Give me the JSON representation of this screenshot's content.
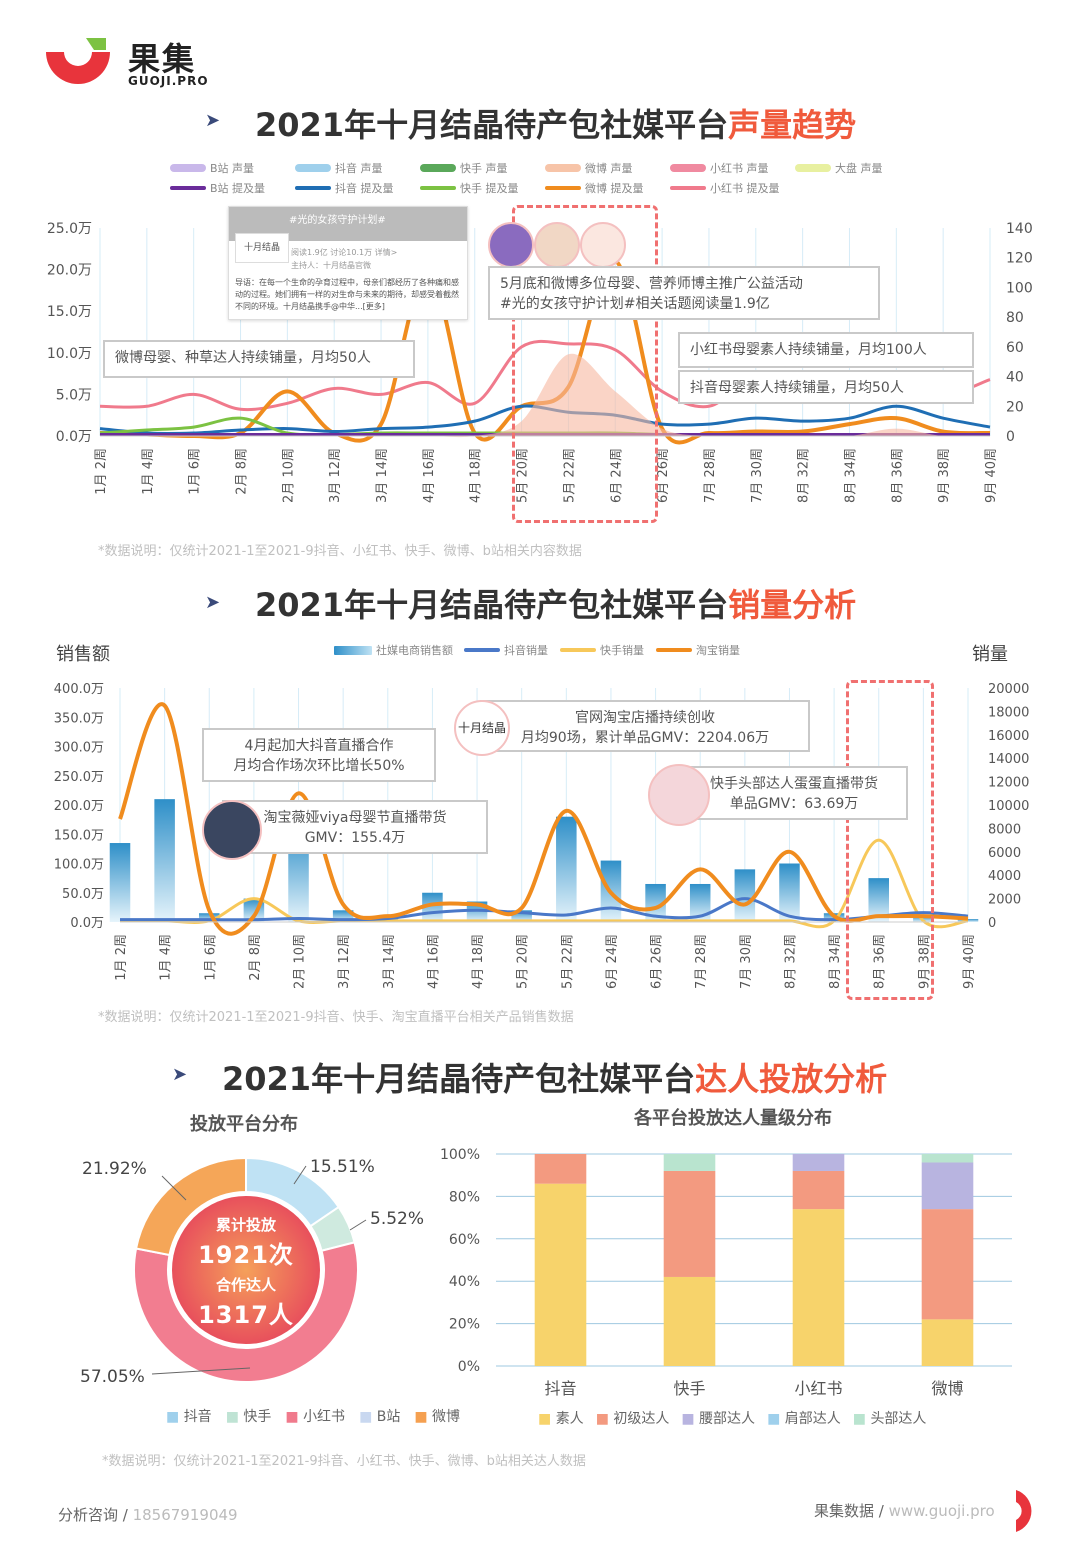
{
  "brand": {
    "name": "果集",
    "sub": "GUOJI.PRO"
  },
  "section1": {
    "title_main": "2021年十月结晶待产包社媒平台",
    "title_hl": "声量趋势",
    "note": "*数据说明：仅统计2021-1至2021-9抖音、小红书、快手、微博、b站相关内容数据",
    "legend_row1": [
      "B站 声量",
      "抖音 声量",
      "快手 声量",
      "微博 声量",
      "小红书 声量",
      "大盘 声量"
    ],
    "legend_row2": [
      "B站 提及量",
      "抖音 提及量",
      "快手 提及量",
      "微博 提及量",
      "小红书 提及量"
    ],
    "post_title": "#光的女孩守护计划#",
    "post_author": "十月结晶",
    "post_meta": "阅读1.9亿 讨论10.1万 详情>",
    "post_host": "主持人：十月结晶官微",
    "post_text": "导语：在每一个生命的孕育过程中，母亲们都经历了各种痛和感动的过程。她们拥有一样的对生命与未来的期待，却感受着截然不同的环境。十月结晶携手@中华...[更多]",
    "callouts": {
      "weibo": "微博母婴、种草达人持续铺量，月均50人",
      "campaign_l1": "5月底和微博多位母婴、营养师博主推广公益活动",
      "campaign_l2": "#光的女孩守护计划#相关话题阅读量1.9亿",
      "xhs": "小红书母婴素人持续铺量，月均100人",
      "douyin": "抖音母婴素人持续铺量，月均50人"
    }
  },
  "section2": {
    "title_main": "2021年十月结晶待产包社媒平台",
    "title_hl": "销量分析",
    "ylabel_left": "销售额",
    "ylabel_right": "销量",
    "legend": [
      "社媒电商销售额",
      "抖音销量",
      "快手销量",
      "淘宝销量"
    ],
    "note": "*数据说明：仅统计2021-1至2021-9抖音、快手、淘宝直播平台相关产品销售数据",
    "callouts": {
      "douyin_l1": "4月起加大抖音直播合作",
      "douyin_l2": "月均合作场次环比增长50%",
      "viya_l1": "淘宝薇娅viya母婴节直播带货",
      "viya_l2": "GMV：155.4万",
      "shop_l1": "官网淘宝店播持续创收",
      "shop_l2": "月均90场，累计单品GMV：2204.06万",
      "shop_logo": "十月结晶",
      "ks_l1": "快手头部达人蛋蛋直播带货",
      "ks_l2": "单品GMV：63.69万"
    }
  },
  "section3": {
    "title_main": "2021年十月结晶待产包社媒平台",
    "title_hl": "达人投放分析",
    "pie_title": "投放平台分布",
    "bar_title": "各平台投放达人量级分布",
    "center_l1": "累计投放",
    "center_v1": "1921次",
    "center_l2": "合作达人",
    "center_v2": "1317人",
    "pie_legend": [
      "抖音",
      "快手",
      "小红书",
      "B站",
      "微博"
    ],
    "bar_legend": [
      "素人",
      "初级达人",
      "腰部达人",
      "肩部达人",
      "头部达人"
    ],
    "note": "*数据说明：仅统计2021-1至2021-9抖音、小红书、快手、微博、b站相关达人数据"
  },
  "footer": {
    "left_label": "分析咨询 / ",
    "left_value": "18567919049",
    "right_label": "果集数据 / ",
    "right_value": "www.guoji.pro"
  },
  "colors": {
    "accent": "#f05a3c",
    "orange": "#f08c1e",
    "pink": "#f07a8c",
    "blue": "#1f6eb4",
    "lightblue": "#9fd0ec",
    "yellow": "#f7d36b"
  },
  "chart_data": [
    {
      "type": "line",
      "x": [
        "1月 2周",
        "1月 4周",
        "1月 6周",
        "2月 8周",
        "2月 10周",
        "3月 12周",
        "3月 14周",
        "4月 16周",
        "4月 18周",
        "5月 20周",
        "5月 22周",
        "6月 24周",
        "6月 26周",
        "7月 28周",
        "7月 30周",
        "8月 32周",
        "8月 34周",
        "8月 36周",
        "9月 38周",
        "9月 40周"
      ],
      "ylim_left": [
        0,
        250000
      ],
      "yticks_left": [
        "0.0万",
        "5.0万",
        "10.0万",
        "15.0万",
        "20.0万",
        "25.0万"
      ],
      "ylim_right": [
        0,
        140
      ],
      "yticks_right": [
        "0",
        "20",
        "40",
        "60",
        "80",
        "100",
        "120",
        "140"
      ],
      "series": [
        {
          "name": "小红书 提及量",
          "axis": "right",
          "values": [
            20,
            20,
            28,
            18,
            22,
            32,
            28,
            36,
            22,
            60,
            62,
            58,
            30,
            20,
            40,
            28,
            36,
            40,
            28,
            38
          ]
        },
        {
          "name": "微博 提及量",
          "axis": "right",
          "values": [
            2,
            1,
            0,
            2,
            30,
            2,
            8,
            110,
            2,
            20,
            33,
            118,
            5,
            2,
            3,
            3,
            8,
            12,
            3,
            2
          ]
        },
        {
          "name": "抖音 提及量",
          "axis": "right",
          "values": [
            5,
            2,
            2,
            4,
            5,
            3,
            5,
            6,
            10,
            20,
            16,
            14,
            8,
            8,
            12,
            10,
            12,
            20,
            12,
            6
          ]
        },
        {
          "name": "快手 提及量",
          "axis": "right",
          "values": [
            2,
            4,
            6,
            12,
            2,
            1,
            2,
            2,
            2,
            2,
            2,
            2,
            1,
            1,
            1,
            1,
            1,
            1,
            1,
            1
          ]
        },
        {
          "name": "B站 提及量",
          "axis": "right",
          "values": [
            1,
            1,
            1,
            1,
            1,
            1,
            1,
            1,
            1,
            1,
            1,
            1,
            1,
            1,
            1,
            1,
            1,
            1,
            1,
            1
          ]
        },
        {
          "name": "微博 声量",
          "axis": "right",
          "values": [
            0,
            0,
            0,
            0,
            0,
            0,
            0,
            0,
            0,
            10,
            55,
            30,
            5,
            0,
            0,
            0,
            0,
            5,
            0,
            0
          ]
        }
      ]
    },
    {
      "type": "bar",
      "x": [
        "1月 2周",
        "1月 4周",
        "1月 6周",
        "2月 8周",
        "2月 10周",
        "3月 12周",
        "3月 14周",
        "4月 16周",
        "4月 18周",
        "5月 20周",
        "5月 22周",
        "6月 24周",
        "6月 26周",
        "7月 28周",
        "7月 30周",
        "8月 32周",
        "8月 34周",
        "8月 36周",
        "9月 38周",
        "9月 40周"
      ],
      "ylim_left": [
        0,
        4000000
      ],
      "yticks_left": [
        "0.0万",
        "50.0万",
        "100.0万",
        "150.0万",
        "200.0万",
        "250.0万",
        "300.0万",
        "350.0万",
        "400.0万"
      ],
      "ylim_right": [
        0,
        20000
      ],
      "yticks_right": [
        "0",
        "2000",
        "4000",
        "6000",
        "8000",
        "10000",
        "12000",
        "14000",
        "16000",
        "18000",
        "20000"
      ],
      "bars_name": "社媒电商销售额",
      "bars": [
        1350000,
        2100000,
        150000,
        400000,
        1600000,
        200000,
        100000,
        500000,
        350000,
        200000,
        1800000,
        1050000,
        650000,
        650000,
        900000,
        1000000,
        150000,
        750000,
        100000,
        50000
      ],
      "series": [
        {
          "name": "淘宝销量",
          "values": [
            8800,
            18500,
            1000,
            500,
            11000,
            1500,
            500,
            1500,
            1500,
            1200,
            9500,
            2500,
            1200,
            4500,
            1500,
            6000,
            500,
            500,
            500,
            300
          ]
        },
        {
          "name": "抖音销量",
          "values": [
            200,
            200,
            200,
            200,
            300,
            200,
            300,
            800,
            1000,
            800,
            600,
            1200,
            500,
            500,
            2000,
            500,
            200,
            500,
            800,
            500
          ]
        },
        {
          "name": "快手销量",
          "values": [
            100,
            100,
            100,
            2000,
            100,
            100,
            100,
            100,
            100,
            100,
            100,
            100,
            100,
            100,
            100,
            100,
            100,
            7000,
            100,
            100
          ]
        }
      ]
    },
    {
      "type": "pie",
      "title": "投放平台分布",
      "labels": [
        "抖音",
        "快手",
        "小红书",
        "B站",
        "微博"
      ],
      "values": [
        15.51,
        5.52,
        57.05,
        0,
        21.92
      ],
      "value_labels": [
        "15.51%",
        "5.52%",
        "57.05%",
        "",
        "21.92%"
      ]
    },
    {
      "type": "bar",
      "stacked": true,
      "title": "各平台投放达人量级分布",
      "categories": [
        "抖音",
        "快手",
        "小红书",
        "微博"
      ],
      "ylim": [
        0,
        100
      ],
      "yticks": [
        "0%",
        "20%",
        "40%",
        "60%",
        "80%",
        "100%"
      ],
      "series": [
        {
          "name": "素人",
          "values": [
            86,
            42,
            74,
            22
          ]
        },
        {
          "name": "初级达人",
          "values": [
            14,
            50,
            18,
            52
          ]
        },
        {
          "name": "腰部达人",
          "values": [
            0,
            0,
            8,
            22
          ]
        },
        {
          "name": "肩部达人",
          "values": [
            0,
            0,
            0,
            0
          ]
        },
        {
          "name": "头部达人",
          "values": [
            0,
            8,
            0,
            4
          ]
        }
      ]
    }
  ]
}
